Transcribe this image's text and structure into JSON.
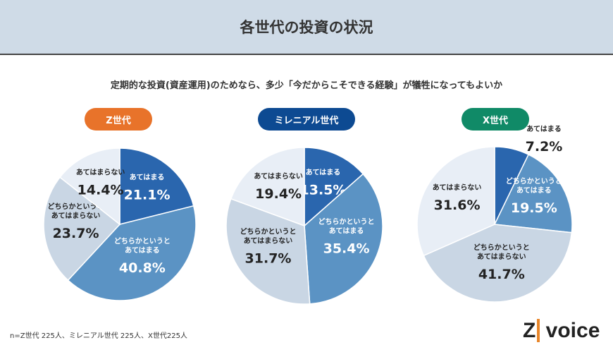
{
  "header": {
    "title": "各世代の投資の状況"
  },
  "question": "定期的な投資(資産運用)のためなら、多少「今だからこそできる経験」が犠牲になってもよいか",
  "note": "n=Z世代 225人、ミレニアル世代 225人、X世代225人",
  "logo": {
    "z": "Z",
    "text": "voice"
  },
  "colors": {
    "slices": [
      "#2a66ae",
      "#5b93c4",
      "#c9d6e4",
      "#e8eef6"
    ],
    "text": [
      "#ffffff",
      "#ffffff",
      "#222222",
      "#222222"
    ]
  },
  "chart_data": [
    {
      "type": "pie",
      "title": "Z世代",
      "title_color": "#e8732a",
      "categories": [
        "あてはまる",
        "どちらかというとあてはまる",
        "どちらかというとあてはまらない",
        "あてはまらない"
      ],
      "values": [
        21.1,
        40.8,
        23.7,
        14.4
      ],
      "labels": [
        "21.1%",
        "40.8%",
        "23.7%",
        "14.4%"
      ]
    },
    {
      "type": "pie",
      "title": "ミレニアル世代",
      "title_color": "#0d4a92",
      "categories": [
        "あてはまる",
        "どちらかというとあてはまる",
        "どちらかというとあてはまらない",
        "あてはまらない"
      ],
      "values": [
        13.5,
        35.4,
        31.7,
        19.4
      ],
      "labels": [
        "13.5%",
        "35.4%",
        "31.7%",
        "19.4%"
      ]
    },
    {
      "type": "pie",
      "title": "X世代",
      "title_color": "#108a67",
      "categories": [
        "あてはまる",
        "どちらかというとあてはまる",
        "どちらかというとあてはまらない",
        "あてはまらない"
      ],
      "values": [
        7.2,
        19.5,
        41.7,
        31.6
      ],
      "labels": [
        "7.2%",
        "19.5%",
        "41.7%",
        "31.6%"
      ]
    }
  ]
}
